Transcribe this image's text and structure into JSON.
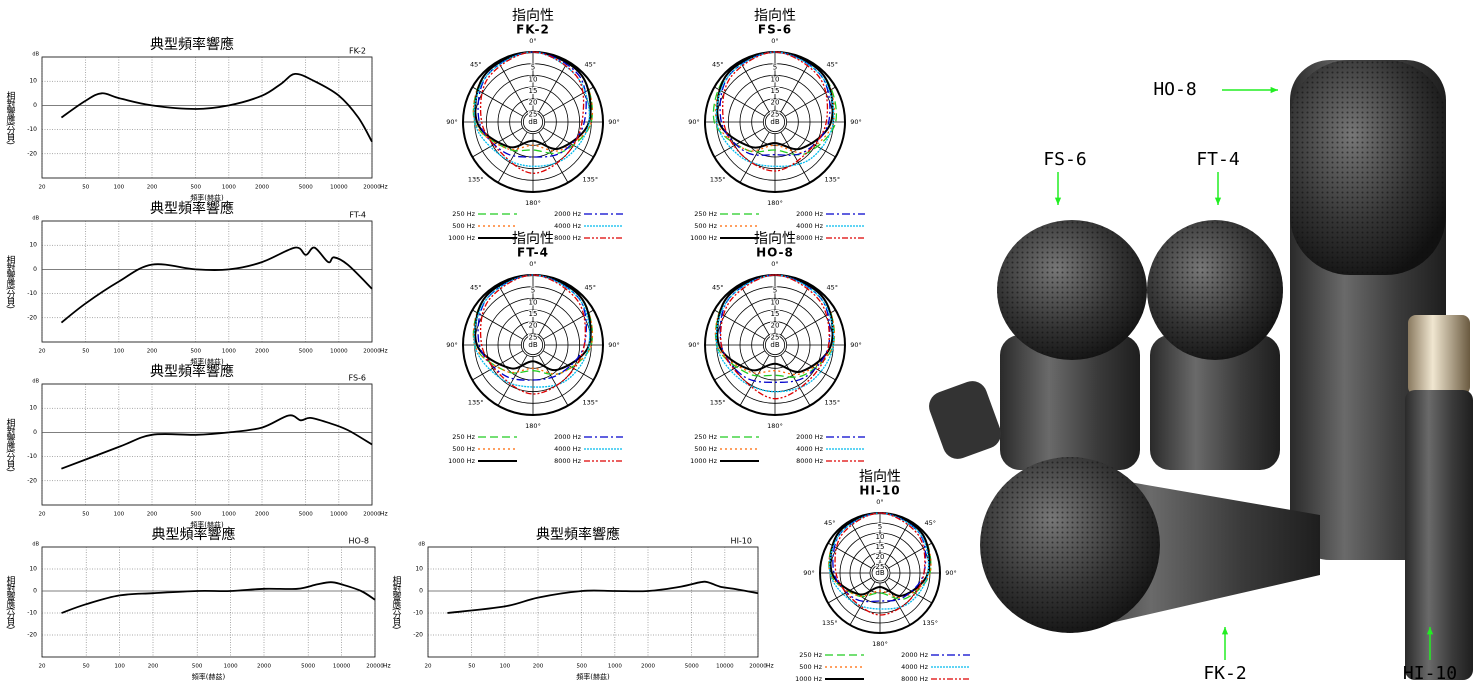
{
  "chart_data": [
    {
      "type": "line",
      "title": "典型頻率響應",
      "model": "FK-2",
      "y_label": "相對響應(分貝)",
      "x_label": "頻率(赫茲)",
      "y_unit": "dB",
      "x_unit": "Hz",
      "log_x": true,
      "grid": true,
      "xlim": [
        20,
        20000
      ],
      "ylim": [
        -30,
        20
      ],
      "xticks": [
        20,
        50,
        100,
        200,
        500,
        1000,
        2000,
        5000,
        10000,
        20000
      ],
      "yticks": [
        -20,
        -10,
        0,
        10
      ],
      "color": "#000000",
      "x": [
        30,
        50,
        70,
        100,
        200,
        500,
        1000,
        2000,
        3000,
        4000,
        6000,
        10000,
        15000,
        20000
      ],
      "values": [
        -5,
        2,
        5,
        3,
        0,
        -1.5,
        0,
        4,
        9,
        13,
        10,
        4,
        -5,
        -15
      ]
    },
    {
      "type": "line",
      "title": "典型頻率響應",
      "model": "FT-4",
      "y_label": "相對響應(分貝)",
      "x_label": "頻率(赫茲)",
      "y_unit": "dB",
      "x_unit": "Hz",
      "log_x": true,
      "grid": true,
      "xlim": [
        20,
        20000
      ],
      "ylim": [
        -30,
        20
      ],
      "xticks": [
        20,
        50,
        100,
        200,
        500,
        1000,
        2000,
        5000,
        10000,
        20000
      ],
      "yticks": [
        -20,
        -10,
        0,
        10
      ],
      "color": "#000000",
      "x": [
        30,
        50,
        100,
        200,
        500,
        1000,
        2000,
        4000,
        5000,
        6000,
        8000,
        9000,
        12000,
        20000
      ],
      "values": [
        -22,
        -14,
        -5,
        2,
        0,
        0,
        3,
        9,
        6,
        9,
        3,
        5,
        2,
        -8
      ]
    },
    {
      "type": "line",
      "title": "典型頻率響應",
      "model": "FS-6",
      "y_label": "相對響應(分貝)",
      "x_label": "頻率(赫茲)",
      "y_unit": "dB",
      "x_unit": "Hz",
      "log_x": true,
      "grid": true,
      "xlim": [
        20,
        20000
      ],
      "ylim": [
        -30,
        20
      ],
      "xticks": [
        20,
        50,
        100,
        200,
        500,
        1000,
        2000,
        5000,
        10000,
        20000
      ],
      "yticks": [
        -20,
        -10,
        0,
        10
      ],
      "color": "#000000",
      "x": [
        30,
        100,
        200,
        500,
        1000,
        2000,
        3500,
        4500,
        5500,
        8000,
        12000,
        20000
      ],
      "values": [
        -15,
        -6,
        -1,
        -1,
        0,
        2,
        7,
        5,
        6,
        4,
        1,
        -5
      ]
    },
    {
      "type": "line",
      "title": "典型頻率響應",
      "model": "HO-8",
      "y_label": "相對響應(分貝)",
      "x_label": "頻率(赫茲)",
      "y_unit": "dB",
      "x_unit": "Hz",
      "log_x": true,
      "grid": true,
      "xlim": [
        20,
        20000
      ],
      "ylim": [
        -30,
        20
      ],
      "xticks": [
        20,
        50,
        100,
        200,
        500,
        1000,
        2000,
        5000,
        10000,
        20000
      ],
      "yticks": [
        -20,
        -10,
        0,
        10
      ],
      "color": "#000000",
      "x": [
        30,
        50,
        100,
        200,
        500,
        1000,
        2000,
        4000,
        6000,
        8000,
        10000,
        15000,
        20000
      ],
      "values": [
        -10,
        -6,
        -2,
        -1,
        0,
        0,
        1,
        1,
        3,
        4,
        3,
        0,
        -4
      ]
    },
    {
      "type": "line",
      "title": "典型頻率響應",
      "model": "HI-10",
      "y_label": "相對響應(分貝)",
      "x_label": "頻率(赫茲)",
      "y_unit": "dB",
      "x_unit": "Hz",
      "log_x": true,
      "grid": true,
      "xlim": [
        20,
        20000
      ],
      "ylim": [
        -30,
        20
      ],
      "xticks": [
        20,
        50,
        100,
        200,
        500,
        1000,
        2000,
        5000,
        10000,
        20000
      ],
      "yticks": [
        -20,
        -10,
        0,
        10
      ],
      "color": "#000000",
      "x": [
        30,
        100,
        200,
        500,
        1000,
        2000,
        4000,
        6000,
        7000,
        9000,
        12000,
        20000
      ],
      "values": [
        -10,
        -7,
        -3,
        0,
        0,
        0,
        2,
        4,
        4,
        2,
        1,
        -1
      ]
    },
    {
      "type": "polar",
      "title": "指向性",
      "model": "FK-2",
      "angles": [
        0,
        45,
        90,
        135,
        180,
        225,
        270,
        315
      ],
      "angle_ticks": [
        {
          "value": 0,
          "label": "0°"
        },
        {
          "value": 45,
          "label": "45°"
        },
        {
          "value": 90,
          "label": "90°"
        },
        {
          "value": 135,
          "label": "135°"
        },
        {
          "value": 180,
          "label": "180°"
        },
        {
          "value": 225,
          "label": "135°"
        },
        {
          "value": 270,
          "label": "90°"
        },
        {
          "value": 315,
          "label": "45°"
        }
      ],
      "rlim": [
        0,
        30
      ],
      "rticks": [
        5,
        10,
        15,
        20,
        25
      ],
      "r_unit": "dB",
      "series": [
        {
          "name": "250 Hz",
          "color": "#22cc22",
          "values": [
            0,
            1,
            5,
            12,
            18,
            14,
            5,
            1
          ]
        },
        {
          "name": "500 Hz",
          "color": "#ff6600",
          "values": [
            0,
            1,
            5,
            13,
            20,
            14,
            5,
            1
          ]
        },
        {
          "name": "1000 Hz",
          "color": "#000000",
          "values": [
            0,
            1,
            6,
            14,
            22,
            15,
            6,
            1
          ]
        },
        {
          "name": "2000 Hz",
          "color": "#0000cc",
          "values": [
            0,
            2,
            8,
            12,
            15,
            12,
            7,
            2
          ]
        },
        {
          "name": "4000 Hz",
          "color": "#00bbee",
          "values": [
            0,
            3,
            6,
            9,
            11,
            10,
            5,
            2
          ]
        },
        {
          "name": "8000 Hz",
          "color": "#dd0000",
          "values": [
            0,
            3,
            9,
            10,
            8,
            11,
            8,
            3
          ]
        }
      ]
    },
    {
      "type": "polar",
      "title": "指向性",
      "model": "FS-6",
      "angles": [
        0,
        45,
        90,
        135,
        180,
        225,
        270,
        315
      ],
      "angle_ticks": [
        {
          "value": 0,
          "label": "0°"
        },
        {
          "value": 45,
          "label": "45°"
        },
        {
          "value": 90,
          "label": "90°"
        },
        {
          "value": 135,
          "label": "135°"
        },
        {
          "value": 180,
          "label": "180°"
        },
        {
          "value": 225,
          "label": "135°"
        },
        {
          "value": 270,
          "label": "90°"
        },
        {
          "value": 315,
          "label": "45°"
        }
      ],
      "rlim": [
        0,
        30
      ],
      "rticks": [
        5,
        10,
        15,
        20,
        25
      ],
      "r_unit": "dB",
      "series": [
        {
          "name": "250 Hz",
          "color": "#22cc22",
          "values": [
            0,
            1,
            4,
            11,
            18,
            13,
            4,
            1
          ]
        },
        {
          "name": "500 Hz",
          "color": "#ff6600",
          "values": [
            0,
            1,
            5,
            12,
            20,
            13,
            5,
            1
          ]
        },
        {
          "name": "1000 Hz",
          "color": "#000000",
          "values": [
            0,
            1,
            6,
            14,
            21,
            15,
            6,
            1
          ]
        },
        {
          "name": "2000 Hz",
          "color": "#0000cc",
          "values": [
            0,
            2,
            7,
            12,
            16,
            12,
            7,
            2
          ]
        },
        {
          "name": "4000 Hz",
          "color": "#00bbee",
          "values": [
            0,
            2,
            5,
            8,
            11,
            9,
            5,
            2
          ]
        },
        {
          "name": "8000 Hz",
          "color": "#dd0000",
          "values": [
            0,
            3,
            8,
            11,
            9,
            10,
            8,
            3
          ]
        }
      ]
    },
    {
      "type": "polar",
      "title": "指向性",
      "model": "FT-4",
      "angles": [
        0,
        45,
        90,
        135,
        180,
        225,
        270,
        315
      ],
      "angle_ticks": [
        {
          "value": 0,
          "label": "0°"
        },
        {
          "value": 45,
          "label": "45°"
        },
        {
          "value": 90,
          "label": "90°"
        },
        {
          "value": 135,
          "label": "135°"
        },
        {
          "value": 180,
          "label": "180°"
        },
        {
          "value": 225,
          "label": "135°"
        },
        {
          "value": 270,
          "label": "90°"
        },
        {
          "value": 315,
          "label": "45°"
        }
      ],
      "rlim": [
        0,
        30
      ],
      "rticks": [
        5,
        10,
        15,
        20,
        25
      ],
      "r_unit": "dB",
      "series": [
        {
          "name": "250 Hz",
          "color": "#22cc22",
          "values": [
            0,
            1,
            5,
            13,
            19,
            14,
            5,
            1
          ]
        },
        {
          "name": "500 Hz",
          "color": "#ff6600",
          "values": [
            0,
            1,
            5,
            13,
            20,
            14,
            5,
            1
          ]
        },
        {
          "name": "1000 Hz",
          "color": "#000000",
          "values": [
            0,
            1,
            6,
            15,
            23,
            16,
            6,
            1
          ]
        },
        {
          "name": "2000 Hz",
          "color": "#0000cc",
          "values": [
            0,
            2,
            8,
            13,
            15,
            12,
            7,
            2
          ]
        },
        {
          "name": "4000 Hz",
          "color": "#00bbee",
          "values": [
            0,
            2,
            6,
            9,
            12,
            10,
            5,
            2
          ]
        },
        {
          "name": "8000 Hz",
          "color": "#dd0000",
          "values": [
            0,
            3,
            8,
            10,
            9,
            11,
            8,
            3
          ]
        }
      ]
    },
    {
      "type": "polar",
      "title": "指向性",
      "model": "HO-8",
      "angles": [
        0,
        45,
        90,
        135,
        180,
        225,
        270,
        315
      ],
      "angle_ticks": [
        {
          "value": 0,
          "label": "0°"
        },
        {
          "value": 45,
          "label": "45°"
        },
        {
          "value": 90,
          "label": "90°"
        },
        {
          "value": 135,
          "label": "135°"
        },
        {
          "value": 180,
          "label": "180°"
        },
        {
          "value": 225,
          "label": "135°"
        },
        {
          "value": 270,
          "label": "90°"
        },
        {
          "value": 315,
          "label": "45°"
        }
      ],
      "rlim": [
        0,
        30
      ],
      "rticks": [
        5,
        10,
        15,
        20,
        25
      ],
      "r_unit": "dB",
      "series": [
        {
          "name": "250 Hz",
          "color": "#22cc22",
          "values": [
            0,
            1,
            5,
            12,
            17,
            13,
            5,
            1
          ]
        },
        {
          "name": "500 Hz",
          "color": "#ff6600",
          "values": [
            0,
            1,
            5,
            13,
            19,
            14,
            5,
            1
          ]
        },
        {
          "name": "1000 Hz",
          "color": "#000000",
          "values": [
            0,
            1,
            6,
            14,
            22,
            15,
            6,
            1
          ]
        },
        {
          "name": "2000 Hz",
          "color": "#0000cc",
          "values": [
            0,
            2,
            7,
            11,
            14,
            11,
            7,
            2
          ]
        },
        {
          "name": "4000 Hz",
          "color": "#00bbee",
          "values": [
            0,
            2,
            5,
            8,
            10,
            9,
            5,
            2
          ]
        },
        {
          "name": "8000 Hz",
          "color": "#dd0000",
          "values": [
            0,
            3,
            7,
            9,
            7,
            10,
            7,
            3
          ]
        }
      ]
    },
    {
      "type": "polar",
      "title": "指向性",
      "model": "HI-10",
      "angles": [
        0,
        45,
        90,
        135,
        180,
        225,
        270,
        315
      ],
      "angle_ticks": [
        {
          "value": 0,
          "label": "0°"
        },
        {
          "value": 45,
          "label": "45°"
        },
        {
          "value": 90,
          "label": "90°"
        },
        {
          "value": 135,
          "label": "135°"
        },
        {
          "value": 180,
          "label": "180°"
        },
        {
          "value": 225,
          "label": "135°"
        },
        {
          "value": 270,
          "label": "90°"
        },
        {
          "value": 315,
          "label": "45°"
        }
      ],
      "rlim": [
        0,
        30
      ],
      "rticks": [
        5,
        10,
        15,
        20,
        25
      ],
      "r_unit": "dB",
      "series": [
        {
          "name": "250 Hz",
          "color": "#22cc22",
          "values": [
            0,
            1,
            5,
            12,
            20,
            14,
            5,
            1
          ]
        },
        {
          "name": "500 Hz",
          "color": "#ff6600",
          "values": [
            0,
            1,
            5,
            13,
            21,
            14,
            5,
            1
          ]
        },
        {
          "name": "1000 Hz",
          "color": "#000000",
          "values": [
            0,
            1,
            6,
            14,
            23,
            15,
            6,
            1
          ]
        },
        {
          "name": "2000 Hz",
          "color": "#0000cc",
          "values": [
            0,
            2,
            8,
            13,
            16,
            12,
            7,
            2
          ]
        },
        {
          "name": "4000 Hz",
          "color": "#00bbee",
          "values": [
            0,
            2,
            6,
            9,
            12,
            10,
            5,
            2
          ]
        },
        {
          "name": "8000 Hz",
          "color": "#dd0000",
          "values": [
            0,
            3,
            8,
            10,
            9,
            11,
            8,
            3
          ]
        }
      ]
    }
  ],
  "photo_labels": [
    "HO-8",
    "FS-6",
    "FT-4",
    "FK-2",
    "HI-10"
  ]
}
